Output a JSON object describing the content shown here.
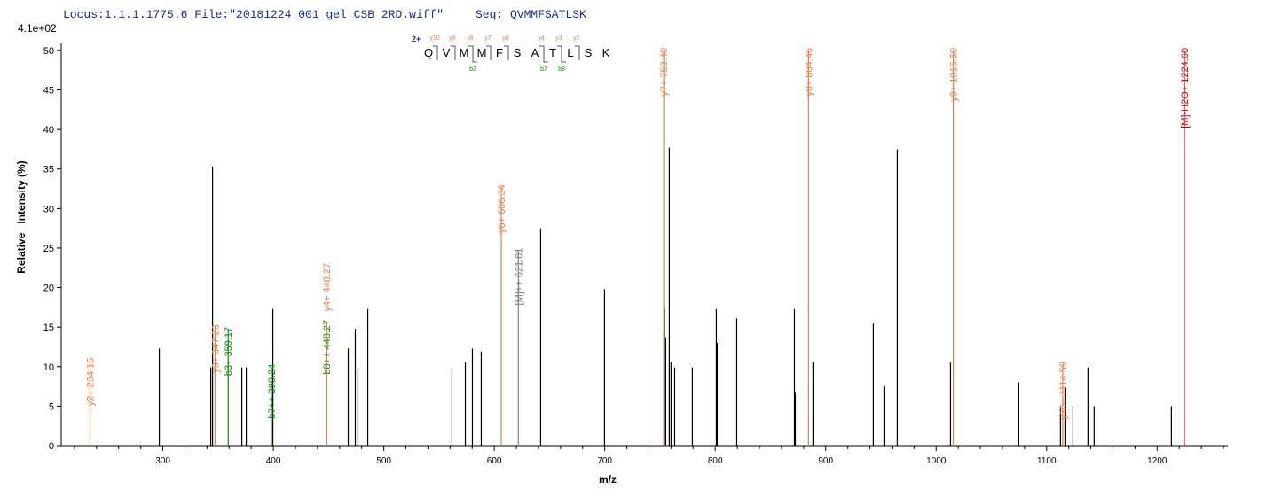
{
  "chart_data": {
    "type": "spectrum",
    "title": "Locus:1.1.1.1775.6 File:\"20181224_001_gel_CSB_2RD.wiff\"",
    "seq_label": "Seq:",
    "sequence": "QVMMFSATLSK",
    "scale_label": "4.1e+02",
    "xlabel": "m/z",
    "ylabel": "Relative   Intensity (%)",
    "xlim": [
      208,
      1264
    ],
    "ylim": [
      0,
      51
    ],
    "xticks": [
      300,
      400,
      500,
      600,
      700,
      800,
      900,
      1000,
      1100,
      1200
    ],
    "xticks_minor": [
      220,
      240,
      260,
      280,
      320,
      340,
      360,
      380,
      420,
      440,
      460,
      480,
      520,
      540,
      560,
      580,
      620,
      640,
      660,
      680,
      720,
      740,
      760,
      780,
      820,
      840,
      860,
      880,
      920,
      940,
      960,
      980,
      1020,
      1040,
      1060,
      1080,
      1120,
      1140,
      1160,
      1180,
      1220,
      1240,
      1260
    ],
    "yticks": [
      0,
      5,
      10,
      15,
      20,
      25,
      30,
      35,
      40,
      45,
      50
    ],
    "fragment_map": {
      "charge": "2+",
      "residues": [
        "Q",
        "V",
        "M",
        "M",
        "F",
        "S",
        "A",
        "T",
        "L",
        "S",
        "K"
      ],
      "y_marks": [
        "y10",
        "y9",
        "y8",
        "y7",
        "y6",
        null,
        "y4",
        "y3",
        "y2",
        null
      ],
      "b_marks": [
        null,
        null,
        "b3",
        null,
        null,
        null,
        "b7",
        "b8",
        null,
        null
      ],
      "y_color": "#e8804a",
      "b_color": "#118811"
    },
    "peaks": {
      "color": "#000000",
      "x": [
        296.8,
        343.4,
        345.0,
        371.5,
        375.5,
        399.6,
        467.8,
        474.2,
        476.6,
        485.5,
        561.7,
        573.8,
        580.2,
        588.2,
        642.0,
        699.8,
        753.6,
        755.2,
        758.4,
        760.0,
        763.3,
        779.3,
        801.0,
        801.8,
        819.5,
        871.7,
        872.5,
        888.5,
        943.1,
        952.8,
        964.8,
        1013.0,
        1074.8,
        1112.5,
        1116.6,
        1123.8,
        1137.4,
        1143.0,
        1212.9
      ],
      "values": [
        12.3,
        9.9,
        35.3,
        9.9,
        9.9,
        17.3,
        12.3,
        14.8,
        9.9,
        17.3,
        9.9,
        10.6,
        12.3,
        11.9,
        27.5,
        19.8,
        17.3,
        13.7,
        37.7,
        10.6,
        9.9,
        9.9,
        17.3,
        13.0,
        16.1,
        17.3,
        6.8,
        10.6,
        15.5,
        7.5,
        37.5,
        10.6,
        8.0,
        5.0,
        7.4,
        5.0,
        9.9,
        5.0,
        5.0
      ]
    },
    "annotated_peaks": [
      {
        "x": 234.15,
        "value": 10.8,
        "label": "y2+ 234.15",
        "color": "#e8804a"
      },
      {
        "x": 347.23,
        "value": 15.0,
        "label": "y3+ 347.23",
        "color": "#e8804a"
      },
      {
        "x": 359.17,
        "value": 14.7,
        "label": "b3+ 359.17",
        "color": "#118811"
      },
      {
        "x": 398.24,
        "value": 10.0,
        "label": "b7++ 398.24",
        "color": "#118811"
      },
      {
        "x": 448.27,
        "value": 15.6,
        "label": "b8++ 448.27",
        "color": "#118811"
      },
      {
        "x": 448.27,
        "value": 15.6,
        "label": "y4+ 448.27",
        "color": "#e8804a"
      },
      {
        "x": 606.34,
        "value": 32.7,
        "label": "y6+ 606.34",
        "color": "#e8804a"
      },
      {
        "x": 621.81,
        "value": 24.7,
        "label": "[M]++ 621.81",
        "color": "#808080"
      },
      {
        "x": 753.4,
        "value": 50,
        "label": "y7+ 753.40",
        "color": "#e8804a"
      },
      {
        "x": 884.46,
        "value": 50,
        "label": "y8+ 884.46",
        "color": "#e8804a"
      },
      {
        "x": 1015.5,
        "value": 50,
        "label": "y9+ 1015.50",
        "color": "#e8804a"
      },
      {
        "x": 1114.59,
        "value": 10.3,
        "label": "y10+ 1114.59",
        "color": "#e8804a"
      },
      {
        "x": 1224.6,
        "value": 50,
        "label": "[M]-H2O+ 1224.60",
        "color": "#cc0000"
      }
    ]
  }
}
